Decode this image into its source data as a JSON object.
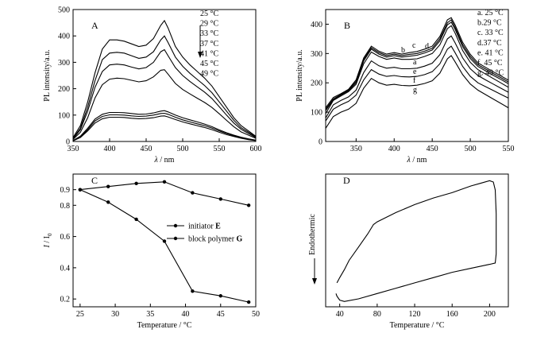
{
  "chart_data": [
    {
      "panel": "A",
      "type": "line",
      "xlabel_italic": "λ",
      "xlabel_rest": " / nm",
      "ylabel": "PL intensity/a.u.",
      "xlim": [
        350,
        600
      ],
      "ylim": [
        0,
        500
      ],
      "xticks": [
        350,
        400,
        450,
        500,
        550,
        600
      ],
      "yticks": [
        0,
        100,
        200,
        300,
        400,
        500
      ],
      "legend": [
        "25 °C",
        "29 °C",
        "33 °C",
        "37 °C",
        "41 °C",
        "45 °C",
        "49 °C"
      ],
      "series": [
        {
          "x": [
            350,
            360,
            370,
            380,
            390,
            400,
            410,
            420,
            430,
            440,
            450,
            460,
            470,
            475,
            480,
            490,
            500,
            510,
            520,
            530,
            540,
            550,
            560,
            570,
            580,
            590,
            600
          ],
          "y": [
            15,
            60,
            150,
            260,
            350,
            385,
            385,
            380,
            370,
            360,
            365,
            390,
            440,
            458,
            430,
            360,
            320,
            290,
            265,
            240,
            210,
            170,
            130,
            90,
            60,
            40,
            20
          ]
        },
        {
          "x": [
            350,
            360,
            370,
            380,
            390,
            400,
            410,
            420,
            430,
            440,
            450,
            460,
            470,
            475,
            480,
            490,
            500,
            510,
            520,
            530,
            540,
            550,
            560,
            570,
            580,
            590,
            600
          ],
          "y": [
            12,
            50,
            130,
            230,
            310,
            335,
            338,
            335,
            325,
            315,
            320,
            340,
            385,
            400,
            375,
            320,
            285,
            258,
            235,
            212,
            185,
            150,
            115,
            80,
            52,
            35,
            18
          ]
        },
        {
          "x": [
            350,
            360,
            370,
            380,
            390,
            400,
            410,
            420,
            430,
            440,
            450,
            460,
            470,
            475,
            480,
            490,
            500,
            510,
            520,
            530,
            540,
            550,
            560,
            570,
            580,
            590,
            600
          ],
          "y": [
            10,
            45,
            115,
            205,
            265,
            290,
            293,
            290,
            282,
            275,
            280,
            300,
            340,
            348,
            325,
            280,
            250,
            227,
            207,
            187,
            163,
            132,
            100,
            70,
            46,
            30,
            15
          ]
        },
        {
          "x": [
            350,
            360,
            370,
            380,
            390,
            400,
            410,
            420,
            430,
            440,
            450,
            460,
            470,
            475,
            480,
            490,
            500,
            510,
            520,
            530,
            540,
            550,
            560,
            570,
            580,
            590,
            600
          ],
          "y": [
            8,
            35,
            90,
            165,
            215,
            236,
            240,
            238,
            232,
            226,
            230,
            245,
            270,
            272,
            255,
            220,
            197,
            180,
            164,
            148,
            129,
            105,
            80,
            56,
            36,
            24,
            12
          ]
        },
        {
          "x": [
            350,
            360,
            370,
            380,
            390,
            400,
            410,
            420,
            430,
            440,
            450,
            460,
            470,
            475,
            480,
            490,
            500,
            510,
            520,
            530,
            540,
            550,
            560,
            570,
            580,
            590,
            600
          ],
          "y": [
            4,
            20,
            50,
            85,
            103,
            110,
            110,
            109,
            106,
            103,
            104,
            108,
            115,
            117,
            112,
            100,
            90,
            82,
            74,
            66,
            56,
            44,
            33,
            24,
            16,
            10,
            5
          ]
        },
        {
          "x": [
            350,
            360,
            370,
            380,
            390,
            400,
            410,
            420,
            430,
            440,
            450,
            460,
            470,
            475,
            480,
            490,
            500,
            510,
            520,
            530,
            540,
            550,
            560,
            570,
            580,
            590,
            600
          ],
          "y": [
            3,
            18,
            45,
            78,
            95,
            101,
            101,
            100,
            97,
            95,
            96,
            100,
            106,
            107,
            103,
            92,
            82,
            74,
            67,
            60,
            51,
            40,
            30,
            22,
            14,
            9,
            4
          ]
        },
        {
          "x": [
            350,
            360,
            370,
            380,
            390,
            400,
            410,
            420,
            430,
            440,
            450,
            460,
            470,
            475,
            480,
            490,
            500,
            510,
            520,
            530,
            540,
            550,
            560,
            570,
            580,
            590,
            600
          ],
          "y": [
            2,
            15,
            40,
            70,
            86,
            92,
            92,
            91,
            88,
            86,
            87,
            90,
            96,
            97,
            93,
            83,
            74,
            67,
            60,
            53,
            45,
            35,
            26,
            19,
            12,
            7,
            3
          ]
        }
      ]
    },
    {
      "panel": "B",
      "type": "line",
      "xlabel_italic": "λ",
      "xlabel_rest": " / nm",
      "ylabel": "PL intensity/a.u.",
      "xlim": [
        310,
        550
      ],
      "ylim": [
        0,
        450
      ],
      "xticks": [
        350,
        400,
        450,
        500,
        550
      ],
      "yticks": [
        0,
        100,
        200,
        300,
        400
      ],
      "legend": [
        "a. 25 °C",
        "b.29 °C",
        "c. 33 °C",
        "d.37 °C",
        "e. 41 °C",
        "f. 45 °C",
        "g. 49 °C"
      ],
      "curve_labels": [
        "b",
        "c",
        "d",
        "a",
        "e",
        "f",
        "g"
      ],
      "series": [
        {
          "x": [
            310,
            320,
            330,
            340,
            350,
            360,
            370,
            380,
            390,
            400,
            410,
            420,
            430,
            440,
            450,
            460,
            470,
            475,
            480,
            490,
            500,
            510,
            520,
            530,
            540,
            550
          ],
          "y": [
            95,
            140,
            155,
            170,
            195,
            265,
            305,
            290,
            280,
            285,
            280,
            280,
            282,
            290,
            300,
            330,
            385,
            395,
            370,
            310,
            270,
            245,
            230,
            215,
            200,
            185
          ]
        },
        {
          "x": [
            310,
            320,
            330,
            340,
            350,
            360,
            370,
            380,
            390,
            400,
            410,
            420,
            430,
            440,
            450,
            460,
            470,
            475,
            480,
            490,
            500,
            510,
            520,
            530,
            540,
            550
          ],
          "y": [
            110,
            145,
            160,
            175,
            205,
            280,
            320,
            303,
            293,
            298,
            293,
            297,
            300,
            308,
            318,
            350,
            405,
            415,
            390,
            330,
            290,
            262,
            247,
            232,
            218,
            203
          ]
        },
        {
          "x": [
            310,
            320,
            330,
            340,
            350,
            360,
            370,
            380,
            390,
            400,
            410,
            420,
            430,
            440,
            450,
            460,
            470,
            475,
            480,
            490,
            500,
            510,
            520,
            530,
            540,
            550
          ],
          "y": [
            115,
            150,
            163,
            178,
            210,
            285,
            325,
            308,
            298,
            303,
            298,
            303,
            307,
            315,
            325,
            358,
            415,
            422,
            398,
            338,
            297,
            268,
            253,
            238,
            224,
            209
          ]
        },
        {
          "x": [
            310,
            320,
            330,
            340,
            350,
            360,
            370,
            380,
            390,
            400,
            410,
            420,
            430,
            440,
            450,
            460,
            470,
            475,
            480,
            490,
            500,
            510,
            520,
            530,
            540,
            550
          ],
          "y": [
            105,
            142,
            158,
            173,
            200,
            275,
            315,
            298,
            288,
            293,
            288,
            291,
            294,
            302,
            312,
            343,
            398,
            407,
            383,
            323,
            283,
            256,
            241,
            226,
            212,
            197
          ]
        },
        {
          "x": [
            310,
            320,
            330,
            340,
            350,
            360,
            370,
            380,
            390,
            400,
            410,
            420,
            430,
            440,
            450,
            460,
            470,
            475,
            480,
            490,
            500,
            510,
            520,
            530,
            540,
            550
          ],
          "y": [
            80,
            125,
            140,
            152,
            175,
            235,
            275,
            258,
            250,
            253,
            248,
            248,
            250,
            257,
            267,
            296,
            350,
            360,
            337,
            285,
            248,
            225,
            210,
            196,
            182,
            168
          ]
        },
        {
          "x": [
            310,
            320,
            330,
            340,
            350,
            360,
            370,
            380,
            390,
            400,
            410,
            420,
            430,
            440,
            450,
            460,
            470,
            475,
            480,
            490,
            500,
            510,
            520,
            530,
            540,
            550
          ],
          "y": [
            70,
            110,
            125,
            137,
            158,
            210,
            245,
            230,
            222,
            225,
            221,
            220,
            222,
            228,
            238,
            265,
            315,
            325,
            303,
            256,
            222,
            200,
            187,
            174,
            161,
            148
          ]
        },
        {
          "x": [
            310,
            320,
            330,
            340,
            350,
            360,
            370,
            380,
            390,
            400,
            410,
            420,
            430,
            440,
            450,
            460,
            470,
            475,
            480,
            490,
            500,
            510,
            520,
            530,
            540,
            550
          ],
          "y": [
            45,
            85,
            100,
            110,
            130,
            182,
            215,
            200,
            192,
            195,
            191,
            190,
            192,
            198,
            207,
            233,
            282,
            293,
            272,
            228,
            196,
            175,
            160,
            145,
            130,
            115
          ]
        }
      ]
    },
    {
      "panel": "C",
      "type": "line",
      "xlabel": "Temperature / °C",
      "ylabel_italic": "I",
      "ylabel_rest": " / I",
      "ylabel_sub": "0",
      "xlim": [
        24,
        50
      ],
      "ylim": [
        0.15,
        1.0
      ],
      "xticks": [
        25,
        30,
        35,
        40,
        45,
        50
      ],
      "yticks": [
        0.2,
        0.4,
        0.6,
        0.8,
        0.9
      ],
      "series": [
        {
          "name": "initiator",
          "name_bold": "E",
          "x": [
            25,
            29,
            33,
            37,
            41,
            45,
            49
          ],
          "y": [
            0.9,
            0.82,
            0.71,
            0.57,
            0.25,
            0.22,
            0.18
          ]
        },
        {
          "name": "block polymer",
          "name_bold": "G",
          "x": [
            25,
            29,
            33,
            37,
            41,
            45,
            49
          ],
          "y": [
            0.9,
            0.92,
            0.94,
            0.95,
            0.88,
            0.84,
            0.8
          ]
        }
      ]
    },
    {
      "panel": "D",
      "type": "line",
      "xlabel": "Temperature / °C",
      "ylabel": "Endothermic",
      "xlim": [
        25,
        220
      ],
      "ylim": [
        0,
        100
      ],
      "xticks": [
        40,
        80,
        120,
        160,
        200
      ],
      "series": [
        {
          "x": [
            36,
            37,
            40,
            45,
            60,
            80,
            100,
            120,
            140,
            160,
            180,
            200,
            206,
            207,
            207,
            206,
            204,
            200,
            190,
            180,
            160,
            140,
            120,
            100,
            80,
            76,
            70,
            60,
            50,
            45,
            40,
            37
          ],
          "y": [
            10,
            8,
            5,
            4,
            6,
            10,
            14,
            18,
            22,
            26,
            29,
            32,
            33,
            40,
            70,
            88,
            94,
            95,
            93,
            91,
            86,
            82,
            77,
            71,
            64,
            62,
            55,
            45,
            35,
            28,
            22,
            18
          ]
        }
      ]
    }
  ]
}
